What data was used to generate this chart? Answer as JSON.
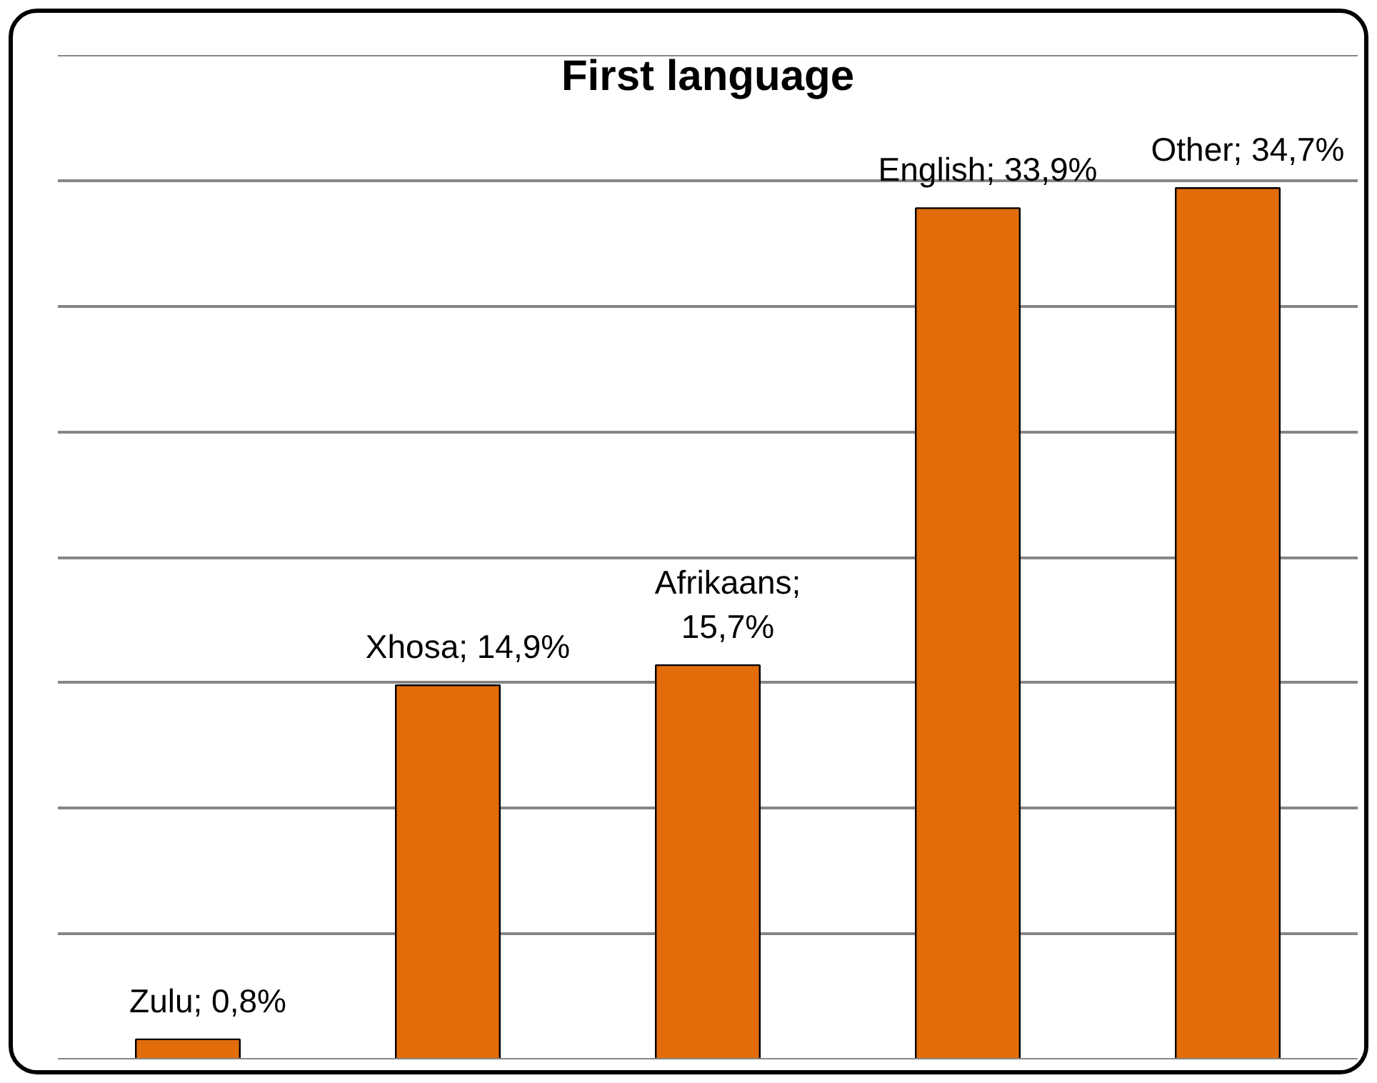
{
  "chart_data": {
    "type": "bar",
    "title": "First language",
    "categories": [
      null,
      null,
      null,
      null,
      null
    ],
    "values": [
      0.8,
      14.9,
      15.7,
      33.9,
      34.7
    ],
    "value_labels": [
      "Zulu; 0,8%",
      "Xhosa; 14,9%",
      "Afrikaans;\n15,7%",
      "English; 33,9%",
      "Other; 34,7%"
    ],
    "color": "#e36c0a",
    "ylim": [
      0,
      40
    ],
    "yticks": [
      {
        "value": 0,
        "label": null
      },
      {
        "value": 5,
        "label": null
      },
      {
        "value": 10,
        "label": null
      },
      {
        "value": 15,
        "label": null
      },
      {
        "value": 20,
        "label": null
      },
      {
        "value": 25,
        "label": null
      },
      {
        "value": 30,
        "label": null
      },
      {
        "value": 35,
        "label": null
      },
      {
        "value": 40,
        "label": null
      }
    ],
    "grid": "y",
    "tick_labels": false
  }
}
